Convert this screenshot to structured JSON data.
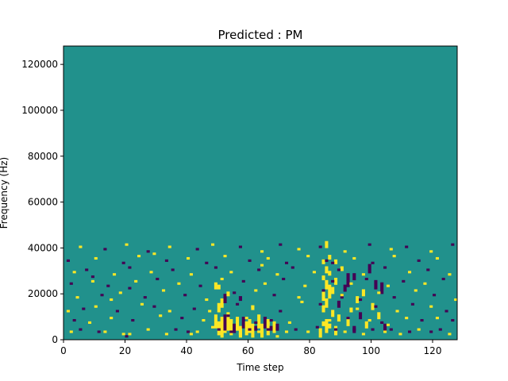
{
  "chart_data": {
    "type": "heatmap",
    "title": "Predicted : PM",
    "xlabel": "Time step",
    "ylabel": "Frequency (Hz)",
    "xlim": [
      0,
      128
    ],
    "ylim": [
      0,
      128000
    ],
    "xticks": [
      0,
      20,
      40,
      60,
      80,
      100,
      120
    ],
    "yticks": [
      0,
      20000,
      40000,
      60000,
      80000,
      100000,
      120000
    ],
    "colormap": "viridis",
    "grid": false,
    "legend": "none",
    "levels": {
      "low": 0,
      "mid": 1,
      "high": 2
    },
    "colors": {
      "low": "#440154",
      "mid": "#21918c",
      "high": "#fde725"
    },
    "background_level": 1,
    "cells": [
      [
        2,
        3,
        2
      ],
      [
        5,
        4,
        0
      ],
      [
        11,
        3,
        0
      ],
      [
        13,
        3,
        2
      ],
      [
        19,
        2,
        2
      ],
      [
        20,
        1,
        0
      ],
      [
        21,
        2,
        2
      ],
      [
        27,
        4,
        2
      ],
      [
        33,
        2,
        2
      ],
      [
        36,
        4,
        0
      ],
      [
        40,
        3,
        0
      ],
      [
        41,
        2,
        2
      ],
      [
        43,
        3,
        2
      ],
      [
        48,
        5,
        2
      ],
      [
        50,
        4,
        0
      ],
      [
        52,
        3,
        2
      ],
      [
        54,
        3,
        0
      ],
      [
        57,
        2,
        2
      ],
      [
        60,
        4,
        0
      ],
      [
        63,
        3,
        2
      ],
      [
        66,
        4,
        0
      ],
      [
        69,
        1,
        2
      ],
      [
        72,
        3,
        2
      ],
      [
        75,
        4,
        0
      ],
      [
        79,
        3,
        2
      ],
      [
        82,
        5,
        0
      ],
      [
        85,
        3,
        2
      ],
      [
        88,
        4,
        0
      ],
      [
        91,
        3,
        2
      ],
      [
        94,
        4,
        0
      ],
      [
        97,
        2,
        2
      ],
      [
        100,
        4,
        0
      ],
      [
        104,
        3,
        2
      ],
      [
        106,
        4,
        0
      ],
      [
        109,
        2,
        2
      ],
      [
        112,
        3,
        0
      ],
      [
        115,
        4,
        2
      ],
      [
        119,
        3,
        0
      ],
      [
        122,
        4,
        0
      ],
      [
        125,
        2,
        2
      ],
      [
        3,
        8,
        0
      ],
      [
        8,
        7,
        2
      ],
      [
        15,
        9,
        2
      ],
      [
        22,
        8,
        0
      ],
      [
        31,
        10,
        2
      ],
      [
        38,
        9,
        0
      ],
      [
        45,
        8,
        2
      ],
      [
        53,
        10,
        0
      ],
      [
        59,
        9,
        2
      ],
      [
        67,
        8,
        0
      ],
      [
        73,
        7,
        2
      ],
      [
        86,
        8,
        2
      ],
      [
        92,
        9,
        0
      ],
      [
        99,
        8,
        2
      ],
      [
        103,
        7,
        0
      ],
      [
        111,
        9,
        2
      ],
      [
        116,
        8,
        0
      ],
      [
        121,
        9,
        2
      ],
      [
        126,
        8,
        0
      ],
      [
        1,
        12,
        2
      ],
      [
        6,
        13,
        0
      ],
      [
        10,
        14,
        2
      ],
      [
        17,
        12,
        0
      ],
      [
        25,
        15,
        2
      ],
      [
        29,
        14,
        0
      ],
      [
        34,
        12,
        2
      ],
      [
        42,
        13,
        0
      ],
      [
        47,
        12,
        2
      ],
      [
        56,
        15,
        0
      ],
      [
        61,
        14,
        2
      ],
      [
        70,
        12,
        0
      ],
      [
        77,
        16,
        2
      ],
      [
        83,
        15,
        0
      ],
      [
        95,
        13,
        2
      ],
      [
        101,
        14,
        0
      ],
      [
        108,
        12,
        2
      ],
      [
        113,
        15,
        0
      ],
      [
        119,
        14,
        2
      ],
      [
        124,
        12,
        0
      ],
      [
        4,
        18,
        2
      ],
      [
        12,
        19,
        0
      ],
      [
        18,
        20,
        2
      ],
      [
        26,
        18,
        0
      ],
      [
        32,
        21,
        2
      ],
      [
        39,
        19,
        0
      ],
      [
        46,
        17,
        2
      ],
      [
        55,
        20,
        0
      ],
      [
        62,
        21,
        2
      ],
      [
        68,
        19,
        0
      ],
      [
        76,
        18,
        2
      ],
      [
        84,
        21,
        0
      ],
      [
        90,
        19,
        2
      ],
      [
        96,
        17,
        0
      ],
      [
        102,
        20,
        2
      ],
      [
        107,
        18,
        0
      ],
      [
        114,
        21,
        2
      ],
      [
        120,
        19,
        0
      ],
      [
        127,
        17,
        2
      ],
      [
        2,
        24,
        0
      ],
      [
        9,
        25,
        2
      ],
      [
        14,
        23,
        0
      ],
      [
        23,
        25,
        2
      ],
      [
        30,
        26,
        0
      ],
      [
        37,
        24,
        2
      ],
      [
        44,
        23,
        0
      ],
      [
        51,
        26,
        2
      ],
      [
        58,
        25,
        0
      ],
      [
        65,
        24,
        2
      ],
      [
        71,
        26,
        0
      ],
      [
        78,
        23,
        2
      ],
      [
        87,
        25,
        0
      ],
      [
        93,
        24,
        2
      ],
      [
        98,
        26,
        0
      ],
      [
        105,
        23,
        2
      ],
      [
        110,
        25,
        0
      ],
      [
        117,
        24,
        2
      ],
      [
        123,
        26,
        0
      ],
      [
        3,
        29,
        2
      ],
      [
        7,
        30,
        0
      ],
      [
        16,
        28,
        2
      ],
      [
        21,
        31,
        0
      ],
      [
        28,
        29,
        2
      ],
      [
        35,
        30,
        0
      ],
      [
        41,
        28,
        2
      ],
      [
        49,
        31,
        0
      ],
      [
        54,
        29,
        2
      ],
      [
        63,
        30,
        0
      ],
      [
        69,
        28,
        2
      ],
      [
        74,
        31,
        0
      ],
      [
        81,
        29,
        2
      ],
      [
        89,
        30,
        0
      ],
      [
        97,
        28,
        2
      ],
      [
        104,
        31,
        0
      ],
      [
        112,
        29,
        2
      ],
      [
        118,
        30,
        0
      ],
      [
        125,
        28,
        2
      ],
      [
        1,
        34,
        0
      ],
      [
        10,
        35,
        2
      ],
      [
        19,
        33,
        0
      ],
      [
        24,
        36,
        2
      ],
      [
        33,
        34,
        0
      ],
      [
        40,
        35,
        2
      ],
      [
        46,
        33,
        0
      ],
      [
        52,
        36,
        2
      ],
      [
        60,
        34,
        0
      ],
      [
        66,
        35,
        2
      ],
      [
        72,
        33,
        0
      ],
      [
        79,
        36,
        2
      ],
      [
        85,
        34,
        0
      ],
      [
        94,
        35,
        2
      ],
      [
        100,
        33,
        0
      ],
      [
        107,
        36,
        2
      ],
      [
        115,
        34,
        0
      ],
      [
        121,
        35,
        2
      ],
      [
        5,
        40,
        2
      ],
      [
        13,
        39,
        0
      ],
      [
        20,
        41,
        2
      ],
      [
        27,
        38,
        0
      ],
      [
        34,
        40,
        2
      ],
      [
        43,
        39,
        0
      ],
      [
        48,
        41,
        2
      ],
      [
        57,
        40,
        0
      ],
      [
        64,
        38,
        2
      ],
      [
        70,
        41,
        0
      ],
      [
        76,
        39,
        2
      ],
      [
        83,
        40,
        0
      ],
      [
        91,
        38,
        2
      ],
      [
        99,
        41,
        0
      ],
      [
        106,
        39,
        2
      ],
      [
        111,
        40,
        0
      ],
      [
        119,
        38,
        2
      ],
      [
        126,
        41,
        0
      ],
      [
        15,
        17,
        2
      ],
      [
        21,
        22,
        0
      ],
      [
        29,
        37,
        2
      ],
      [
        62,
        7,
        0
      ],
      [
        64,
        32,
        2
      ],
      [
        87,
        33,
        0
      ],
      [
        105,
        6,
        2
      ],
      [
        9,
        27,
        0
      ]
    ],
    "runs": [
      [
        49,
        50,
        5,
        11,
        2
      ],
      [
        50,
        51,
        2,
        8,
        2
      ],
      [
        51,
        52,
        1,
        10,
        2
      ],
      [
        52,
        53,
        3,
        11,
        0
      ],
      [
        53,
        54,
        4,
        12,
        2
      ],
      [
        54,
        55,
        2,
        9,
        2
      ],
      [
        55,
        56,
        3,
        7,
        0
      ],
      [
        56,
        57,
        4,
        10,
        2
      ],
      [
        57,
        58,
        1,
        6,
        2
      ],
      [
        58,
        59,
        5,
        10,
        0
      ],
      [
        59,
        60,
        2,
        8,
        2
      ],
      [
        60,
        61,
        3,
        9,
        2
      ],
      [
        61,
        62,
        1,
        7,
        2
      ],
      [
        62,
        63,
        4,
        6,
        0
      ],
      [
        63,
        64,
        5,
        11,
        2
      ],
      [
        64,
        65,
        1,
        7,
        2
      ],
      [
        65,
        66,
        5,
        10,
        0
      ],
      [
        66,
        67,
        2,
        9,
        2
      ],
      [
        67,
        68,
        4,
        6,
        0
      ],
      [
        68,
        69,
        3,
        8,
        2
      ],
      [
        69,
        70,
        4,
        7,
        0
      ],
      [
        50,
        51,
        12,
        16,
        2
      ],
      [
        51,
        52,
        14,
        18,
        2
      ],
      [
        52,
        53,
        16,
        20,
        0
      ],
      [
        50,
        51,
        22,
        24,
        2
      ],
      [
        57,
        58,
        17,
        19,
        0
      ],
      [
        61,
        62,
        13,
        15,
        2
      ],
      [
        53,
        54,
        19,
        21,
        2
      ],
      [
        49,
        50,
        22,
        25,
        2
      ],
      [
        83,
        84,
        1,
        5,
        2
      ],
      [
        84,
        85,
        6,
        8,
        2
      ],
      [
        84,
        85,
        12,
        15,
        2
      ],
      [
        84,
        85,
        17,
        21,
        2
      ],
      [
        84,
        85,
        26,
        28,
        2
      ],
      [
        84,
        85,
        33,
        35,
        2
      ],
      [
        85,
        86,
        4,
        9,
        2
      ],
      [
        85,
        86,
        14,
        18,
        2
      ],
      [
        85,
        86,
        22,
        26,
        2
      ],
      [
        85,
        86,
        29,
        32,
        2
      ],
      [
        85,
        86,
        40,
        43,
        2
      ],
      [
        86,
        87,
        5,
        7,
        2
      ],
      [
        86,
        87,
        18,
        24,
        2
      ],
      [
        86,
        87,
        28,
        30,
        2
      ],
      [
        86,
        87,
        35,
        37,
        2
      ],
      [
        87,
        88,
        10,
        13,
        2
      ],
      [
        87,
        88,
        20,
        23,
        2
      ],
      [
        88,
        89,
        2,
        6,
        2
      ],
      [
        88,
        89,
        24,
        27,
        2
      ],
      [
        88,
        89,
        33,
        35,
        2
      ],
      [
        89,
        90,
        8,
        11,
        2
      ],
      [
        89,
        90,
        14,
        17,
        0
      ],
      [
        90,
        91,
        30,
        32,
        2
      ],
      [
        90,
        91,
        18,
        20,
        0
      ],
      [
        91,
        92,
        21,
        24,
        0
      ],
      [
        92,
        93,
        6,
        10,
        2
      ],
      [
        92,
        93,
        23,
        29,
        0
      ],
      [
        93,
        94,
        12,
        14,
        2
      ],
      [
        94,
        95,
        3,
        6,
        0
      ],
      [
        94,
        95,
        26,
        29,
        0
      ],
      [
        95,
        96,
        16,
        19,
        2
      ],
      [
        96,
        97,
        9,
        12,
        0
      ],
      [
        97,
        98,
        19,
        22,
        2
      ],
      [
        98,
        99,
        5,
        8,
        2
      ],
      [
        99,
        100,
        29,
        33,
        0
      ],
      [
        100,
        101,
        13,
        16,
        2
      ],
      [
        101,
        102,
        22,
        26,
        0
      ],
      [
        102,
        103,
        9,
        12,
        2
      ],
      [
        103,
        104,
        20,
        25,
        0
      ],
      [
        104,
        105,
        4,
        7,
        0
      ]
    ]
  }
}
